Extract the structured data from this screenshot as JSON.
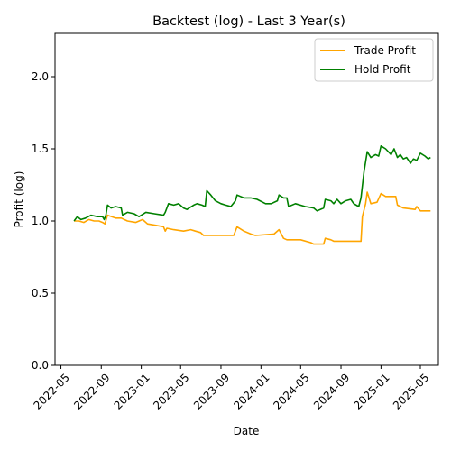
{
  "chart_data": {
    "type": "line",
    "title": "Backtest (log) - Last 3 Year(s)",
    "xlabel": "Date",
    "ylabel": "Profit (log)",
    "x_range": [
      "2022-04-13",
      "2025-06-25"
    ],
    "ylim": [
      0.0,
      2.3
    ],
    "x_ticks": [
      "2022-05",
      "2022-09",
      "2023-01",
      "2023-05",
      "2023-09",
      "2024-01",
      "2024-05",
      "2024-09",
      "2025-01",
      "2025-05"
    ],
    "y_ticks": [
      "0.0",
      "0.5",
      "1.0",
      "1.5",
      "2.0"
    ],
    "grid": false,
    "legend_position": "upper-right",
    "series": [
      {
        "name": "Trade Profit",
        "color": "#ffa500",
        "points": [
          [
            "2022-06-10",
            1.0
          ],
          [
            "2022-06-25",
            1.0
          ],
          [
            "2022-07-10",
            0.99
          ],
          [
            "2022-07-25",
            1.01
          ],
          [
            "2022-08-10",
            1.0
          ],
          [
            "2022-08-25",
            1.0
          ],
          [
            "2022-09-05",
            0.99
          ],
          [
            "2022-09-12",
            0.98
          ],
          [
            "2022-09-20",
            1.04
          ],
          [
            "2022-10-15",
            1.02
          ],
          [
            "2022-11-01",
            1.02
          ],
          [
            "2022-11-20",
            1.0
          ],
          [
            "2022-12-15",
            0.99
          ],
          [
            "2023-01-05",
            1.01
          ],
          [
            "2023-01-20",
            0.98
          ],
          [
            "2023-02-15",
            0.97
          ],
          [
            "2023-03-10",
            0.96
          ],
          [
            "2023-03-15",
            0.93
          ],
          [
            "2023-03-20",
            0.95
          ],
          [
            "2023-04-10",
            0.94
          ],
          [
            "2023-05-10",
            0.93
          ],
          [
            "2023-06-01",
            0.94
          ],
          [
            "2023-06-15",
            0.93
          ],
          [
            "2023-07-01",
            0.92
          ],
          [
            "2023-07-10",
            0.9
          ],
          [
            "2023-08-15",
            0.9
          ],
          [
            "2023-09-15",
            0.9
          ],
          [
            "2023-10-10",
            0.9
          ],
          [
            "2023-10-20",
            0.96
          ],
          [
            "2023-11-10",
            0.93
          ],
          [
            "2023-12-01",
            0.91
          ],
          [
            "2023-12-15",
            0.9
          ],
          [
            "2024-02-10",
            0.91
          ],
          [
            "2024-02-25",
            0.94
          ],
          [
            "2024-03-10",
            0.88
          ],
          [
            "2024-03-20",
            0.87
          ],
          [
            "2024-05-01",
            0.87
          ],
          [
            "2024-06-01",
            0.85
          ],
          [
            "2024-06-10",
            0.84
          ],
          [
            "2024-07-10",
            0.84
          ],
          [
            "2024-07-15",
            0.88
          ],
          [
            "2024-08-01",
            0.87
          ],
          [
            "2024-08-10",
            0.86
          ],
          [
            "2024-09-10",
            0.86
          ],
          [
            "2024-10-01",
            0.86
          ],
          [
            "2024-10-10",
            0.86
          ],
          [
            "2024-11-01",
            0.86
          ],
          [
            "2024-11-05",
            1.03
          ],
          [
            "2024-11-15",
            1.12
          ],
          [
            "2024-11-20",
            1.2
          ],
          [
            "2024-12-01",
            1.12
          ],
          [
            "2024-12-20",
            1.13
          ],
          [
            "2025-01-01",
            1.19
          ],
          [
            "2025-01-15",
            1.17
          ],
          [
            "2025-02-01",
            1.17
          ],
          [
            "2025-02-15",
            1.17
          ],
          [
            "2025-02-20",
            1.11
          ],
          [
            "2025-03-10",
            1.09
          ],
          [
            "2025-04-15",
            1.08
          ],
          [
            "2025-04-20",
            1.1
          ],
          [
            "2025-05-01",
            1.07
          ],
          [
            "2025-06-01",
            1.07
          ]
        ]
      },
      {
        "name": "Hold Profit",
        "color": "#008000",
        "points": [
          [
            "2022-06-10",
            1.0
          ],
          [
            "2022-06-20",
            1.03
          ],
          [
            "2022-07-01",
            1.01
          ],
          [
            "2022-07-15",
            1.02
          ],
          [
            "2022-08-01",
            1.04
          ],
          [
            "2022-08-20",
            1.03
          ],
          [
            "2022-09-05",
            1.03
          ],
          [
            "2022-09-10",
            1.01
          ],
          [
            "2022-09-15",
            1.04
          ],
          [
            "2022-09-20",
            1.11
          ],
          [
            "2022-10-01",
            1.09
          ],
          [
            "2022-10-15",
            1.1
          ],
          [
            "2022-11-01",
            1.09
          ],
          [
            "2022-11-05",
            1.04
          ],
          [
            "2022-11-20",
            1.06
          ],
          [
            "2022-12-10",
            1.05
          ],
          [
            "2022-12-25",
            1.03
          ],
          [
            "2023-01-15",
            1.06
          ],
          [
            "2023-02-10",
            1.05
          ],
          [
            "2023-03-10",
            1.04
          ],
          [
            "2023-03-15",
            1.06
          ],
          [
            "2023-03-25",
            1.12
          ],
          [
            "2023-04-10",
            1.11
          ],
          [
            "2023-04-25",
            1.12
          ],
          [
            "2023-05-10",
            1.09
          ],
          [
            "2023-05-20",
            1.08
          ],
          [
            "2023-06-10",
            1.11
          ],
          [
            "2023-06-20",
            1.12
          ],
          [
            "2023-07-05",
            1.11
          ],
          [
            "2023-07-15",
            1.1
          ],
          [
            "2023-07-20",
            1.21
          ],
          [
            "2023-08-01",
            1.18
          ],
          [
            "2023-08-15",
            1.14
          ],
          [
            "2023-09-01",
            1.12
          ],
          [
            "2023-09-15",
            1.11
          ],
          [
            "2023-10-01",
            1.1
          ],
          [
            "2023-10-15",
            1.14
          ],
          [
            "2023-10-20",
            1.18
          ],
          [
            "2023-11-10",
            1.16
          ],
          [
            "2023-12-01",
            1.16
          ],
          [
            "2023-12-20",
            1.15
          ],
          [
            "2024-01-15",
            1.12
          ],
          [
            "2024-02-01",
            1.12
          ],
          [
            "2024-02-20",
            1.14
          ],
          [
            "2024-02-25",
            1.18
          ],
          [
            "2024-03-10",
            1.16
          ],
          [
            "2024-03-20",
            1.16
          ],
          [
            "2024-03-25",
            1.1
          ],
          [
            "2024-04-15",
            1.12
          ],
          [
            "2024-05-15",
            1.1
          ],
          [
            "2024-06-10",
            1.09
          ],
          [
            "2024-06-20",
            1.07
          ],
          [
            "2024-07-10",
            1.09
          ],
          [
            "2024-07-15",
            1.15
          ],
          [
            "2024-08-01",
            1.14
          ],
          [
            "2024-08-10",
            1.12
          ],
          [
            "2024-08-20",
            1.15
          ],
          [
            "2024-09-01",
            1.12
          ],
          [
            "2024-09-15",
            1.14
          ],
          [
            "2024-10-01",
            1.15
          ],
          [
            "2024-10-10",
            1.12
          ],
          [
            "2024-10-25",
            1.1
          ],
          [
            "2024-11-01",
            1.16
          ],
          [
            "2024-11-10",
            1.34
          ],
          [
            "2024-11-20",
            1.48
          ],
          [
            "2024-12-01",
            1.44
          ],
          [
            "2024-12-15",
            1.46
          ],
          [
            "2024-12-25",
            1.45
          ],
          [
            "2025-01-01",
            1.52
          ],
          [
            "2025-01-15",
            1.5
          ],
          [
            "2025-02-01",
            1.46
          ],
          [
            "2025-02-10",
            1.5
          ],
          [
            "2025-02-20",
            1.44
          ],
          [
            "2025-03-01",
            1.46
          ],
          [
            "2025-03-10",
            1.43
          ],
          [
            "2025-03-20",
            1.44
          ],
          [
            "2025-04-01",
            1.4
          ],
          [
            "2025-04-10",
            1.43
          ],
          [
            "2025-04-20",
            1.42
          ],
          [
            "2025-05-01",
            1.47
          ],
          [
            "2025-05-15",
            1.45
          ],
          [
            "2025-05-25",
            1.43
          ],
          [
            "2025-06-01",
            1.44
          ]
        ]
      }
    ]
  }
}
